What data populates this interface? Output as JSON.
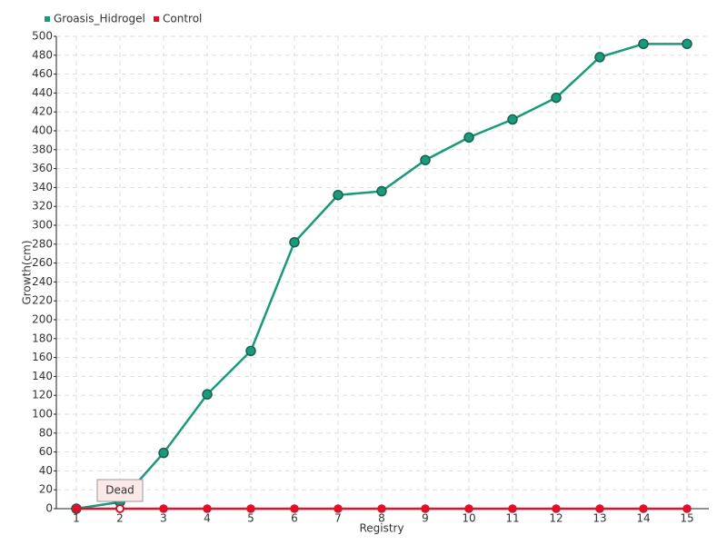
{
  "chart_data": {
    "type": "line",
    "categories": [
      "1",
      "2",
      "3",
      "4",
      "5",
      "6",
      "7",
      "8",
      "9",
      "10",
      "11",
      "12",
      "13",
      "14",
      "15"
    ],
    "series": [
      {
        "name": "Groasis_Hidrogel",
        "color": "#1a9a7a",
        "values": [
          0,
          7,
          59,
          121,
          167,
          282,
          332,
          336,
          369,
          393,
          412,
          435,
          478,
          492,
          492
        ]
      },
      {
        "name": "Control",
        "color": "#e0102a",
        "values": [
          0,
          0,
          0,
          0,
          0,
          0,
          0,
          0,
          0,
          0,
          0,
          0,
          0,
          0,
          0
        ]
      }
    ],
    "annotation": "Dead",
    "ylabel": "Growth(cm)",
    "xlabel": "Registry",
    "ylim": [
      0,
      500
    ],
    "yticks": [
      0,
      20,
      40,
      60,
      80,
      100,
      120,
      140,
      160,
      180,
      200,
      220,
      240,
      260,
      280,
      300,
      320,
      340,
      360,
      380,
      400,
      420,
      440,
      460,
      480,
      500
    ],
    "grid": true,
    "legend": "top-left"
  }
}
